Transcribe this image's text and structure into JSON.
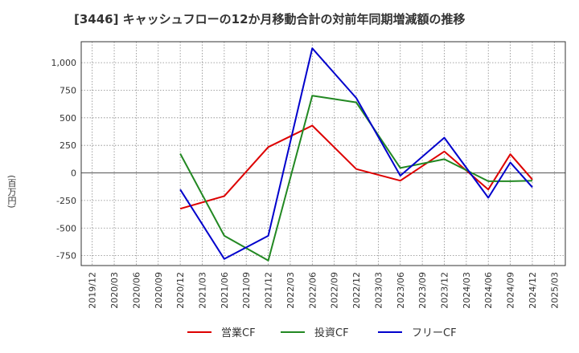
{
  "chart_data": {
    "type": "line",
    "title": "[3446]  キャッシュフローの12か月移動合計の対前年同期増減額の推移",
    "ylabel": "(百万円)",
    "xlabel": "",
    "ylim": [
      -840,
      1190
    ],
    "yticks": [
      -750,
      -500,
      -250,
      0,
      250,
      500,
      750,
      1000
    ],
    "ytick_labels": [
      "-750",
      "-500",
      "-250",
      "0",
      "250",
      "500",
      "750",
      "1,000"
    ],
    "xticks": [
      "2019/12",
      "2020/03",
      "2020/06",
      "2020/09",
      "2020/12",
      "2021/03",
      "2021/06",
      "2021/09",
      "2021/12",
      "2022/03",
      "2022/06",
      "2022/09",
      "2022/12",
      "2023/03",
      "2023/06",
      "2023/09",
      "2023/12",
      "2024/03",
      "2024/06",
      "2024/09",
      "2024/12",
      "2025/03"
    ],
    "grid": true,
    "legend_position": "bottom",
    "series": [
      {
        "name": "営業CF",
        "color": "#dd0000",
        "x": [
          "2020/12",
          "2021/06",
          "2021/12",
          "2022/06",
          "2022/12",
          "2023/06",
          "2023/12",
          "2024/06",
          "2024/09",
          "2024/12"
        ],
        "values": [
          -325,
          -210,
          235,
          430,
          35,
          -70,
          195,
          -150,
          170,
          -60
        ]
      },
      {
        "name": "投資CF",
        "color": "#228822",
        "x": [
          "2020/12",
          "2021/06",
          "2021/12",
          "2022/06",
          "2022/12",
          "2023/06",
          "2023/12",
          "2024/06",
          "2024/09",
          "2024/12"
        ],
        "values": [
          175,
          -570,
          -795,
          700,
          640,
          45,
          125,
          -75,
          -75,
          -70
        ]
      },
      {
        "name": "フリーCF",
        "color": "#0000cc",
        "x": [
          "2020/12",
          "2021/06",
          "2021/12",
          "2022/06",
          "2022/12",
          "2023/06",
          "2023/12",
          "2024/06",
          "2024/09",
          "2024/12"
        ],
        "values": [
          -150,
          -780,
          -570,
          1130,
          680,
          -25,
          320,
          -225,
          95,
          -130
        ]
      }
    ]
  }
}
